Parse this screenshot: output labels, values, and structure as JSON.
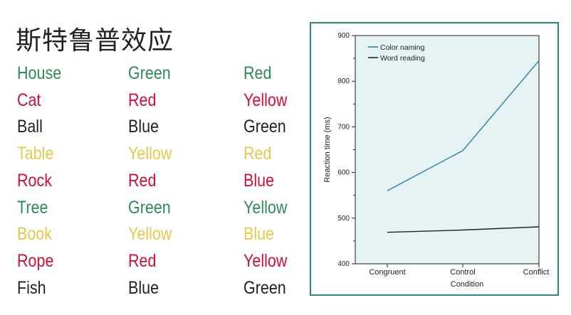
{
  "title": "斯特鲁普效应",
  "colors": {
    "green": "#2e8b57",
    "red": "#d0103a",
    "black": "#222222",
    "yellow": "#e8c84a",
    "blue": "#e8c84a"
  },
  "stroop_columns": [
    [
      {
        "text": "House",
        "color": "green"
      },
      {
        "text": "Cat",
        "color": "red"
      },
      {
        "text": "Ball",
        "color": "black"
      },
      {
        "text": "Table",
        "color": "yellow"
      },
      {
        "text": "Rock",
        "color": "red"
      },
      {
        "text": "Tree",
        "color": "green"
      },
      {
        "text": "Book",
        "color": "yellow"
      },
      {
        "text": "Rope",
        "color": "red"
      },
      {
        "text": "Fish",
        "color": "black"
      }
    ],
    [
      {
        "text": "Green",
        "color": "green"
      },
      {
        "text": "Red",
        "color": "red"
      },
      {
        "text": "Blue",
        "color": "black"
      },
      {
        "text": "Yellow",
        "color": "yellow"
      },
      {
        "text": "Red",
        "color": "red"
      },
      {
        "text": "Green",
        "color": "green"
      },
      {
        "text": "Yellow",
        "color": "yellow"
      },
      {
        "text": "Red",
        "color": "red"
      },
      {
        "text": "Blue",
        "color": "black"
      }
    ],
    [
      {
        "text": "Red",
        "color": "green"
      },
      {
        "text": "Yellow",
        "color": "red"
      },
      {
        "text": "Green",
        "color": "black"
      },
      {
        "text": "Red",
        "color": "yellow"
      },
      {
        "text": "Blue",
        "color": "red"
      },
      {
        "text": "Yellow",
        "color": "green"
      },
      {
        "text": "Blue",
        "color": "yellow"
      },
      {
        "text": "Yellow",
        "color": "red"
      },
      {
        "text": "Green",
        "color": "black"
      }
    ]
  ],
  "chart_data": {
    "type": "line",
    "title": "",
    "xlabel": "Condition",
    "ylabel": "Reaction time (ms)",
    "categories": [
      "Congruent",
      "Control",
      "Conflict"
    ],
    "ylim": [
      400,
      900
    ],
    "yticks": [
      400,
      500,
      600,
      700,
      800,
      900
    ],
    "grid": false,
    "legend_position": "top-left",
    "plot_background": "#e6f3f5",
    "series": [
      {
        "name": "Color naming",
        "values": [
          560,
          648,
          845
        ],
        "color": "#2b7fa0"
      },
      {
        "name": "Word reading",
        "values": [
          469,
          474,
          481
        ],
        "color": "#222222"
      }
    ]
  }
}
